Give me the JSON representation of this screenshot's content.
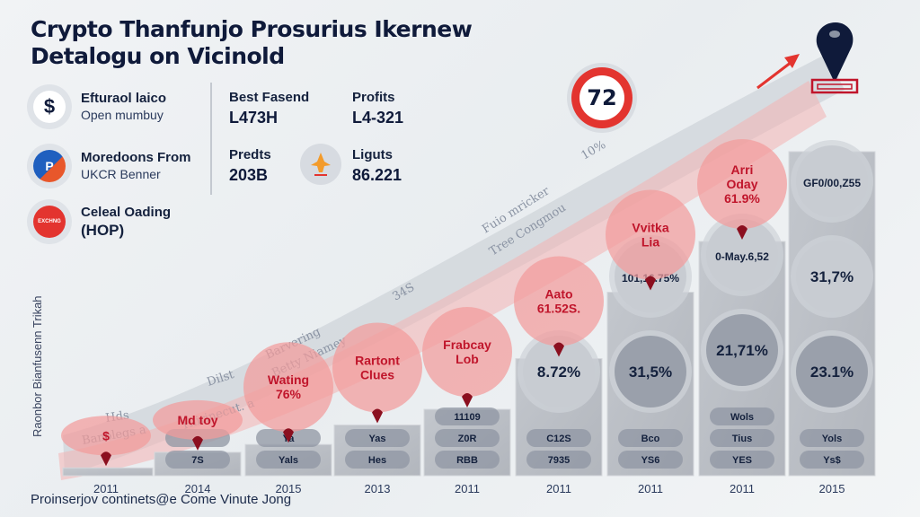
{
  "title": {
    "line1": "Crypto Thanfunjo Prosurius Ikernew",
    "line2": "Detalogu on Vicinold"
  },
  "legend": [
    {
      "icon": "dollar-icon",
      "glyph": "$",
      "label": "Efturaol laico",
      "sublabel": "Open mumbuy"
    },
    {
      "icon": "payment-icon",
      "glyph": "P",
      "label": "Moredoons From",
      "sublabel": "UKCR Benner"
    },
    {
      "icon": "exchange-logo-icon",
      "glyph": "EXCHNG",
      "label": "Celeal Oading",
      "sublabel": "(HOP)"
    }
  ],
  "stats": [
    {
      "label": "Best Fasend",
      "value": "L473H"
    },
    {
      "label": "Profits",
      "value": "L4-321"
    },
    {
      "label": "Predts",
      "value": "203B"
    },
    {
      "label": "Liguts",
      "value": "86.221"
    }
  ],
  "badge": {
    "value": "72",
    "caption": "10%"
  },
  "y_axis_label": "Raonbor Bianfusenn Trikah",
  "footer": "Proinserjov continets@e Come Vinute Jong",
  "colors": {
    "accent_red": "#e3342f",
    "bubble_red": "#f29b9b",
    "bubble_text": "#c0152b",
    "bar_gray": "#b9bdc4",
    "navy": "#0f1a3a"
  },
  "chart_data": {
    "type": "bar",
    "title": "Crypto Thanfunjo Prosurius Ikernew Detalogu on Vicinold",
    "xlabel": "",
    "ylabel": "Raonbor Bianfusenn Trikah",
    "ylim": [
      0,
      100
    ],
    "grid": false,
    "legend": "top-left",
    "categories": [
      "2011",
      "2014",
      "2015",
      "2013",
      "2011",
      "2011",
      "2011",
      "2011",
      "2015"
    ],
    "values": [
      2,
      6,
      8,
      13,
      17,
      30,
      47,
      60,
      83
    ],
    "callouts": [
      {
        "lines": [
          "$"
        ]
      },
      {
        "lines": [
          "Md toy"
        ]
      },
      {
        "lines": [
          "Wating",
          "76%"
        ]
      },
      {
        "lines": [
          "Rartont",
          "Clues"
        ]
      },
      {
        "lines": [
          "Frabcay",
          "Lob"
        ]
      },
      {
        "lines": [
          "Aato",
          "61.52S."
        ]
      },
      {
        "lines": [
          "Vvitka",
          "Lia"
        ]
      },
      {
        "lines": [
          "Arri",
          "Oday",
          "61.9%"
        ]
      },
      null
    ],
    "bar_labels": [
      {
        "circles": [],
        "pills": []
      },
      {
        "circles": [],
        "pills": [
          "",
          "7S"
        ]
      },
      {
        "circles": [],
        "pills": [
          "Ya",
          "Yals"
        ]
      },
      {
        "circles": [],
        "pills": [
          "Yas",
          "Hes"
        ]
      },
      {
        "circles": [],
        "pills": [
          "11109",
          "Z0R",
          "RBB"
        ]
      },
      {
        "circles": [
          "8.72%"
        ],
        "pills": [
          "C12S",
          "7935"
        ]
      },
      {
        "circles": [
          "101,16.75%",
          "31,5%"
        ],
        "pills": [
          "Bco",
          "YS6"
        ]
      },
      {
        "circles": [
          "0-May.6,52",
          "21,71%"
        ],
        "pills": [
          "Wols",
          "Tius",
          "YES"
        ]
      },
      {
        "circles": [
          "GF0/00,Z55",
          "31,7%",
          "23.1%"
        ],
        "pills": [
          "Yols",
          "Ys$"
        ]
      }
    ],
    "annotations": [
      {
        "text": "Hds"
      },
      {
        "text": "Banolegs a"
      },
      {
        "text": "Hiirinecut. a"
      },
      {
        "text": "Dilst"
      },
      {
        "text": "Barvering"
      },
      {
        "text": "Betty Niamey"
      },
      {
        "text": "34S"
      },
      {
        "text": "Fuio mricker"
      },
      {
        "text": "Tree Congmou"
      }
    ]
  }
}
